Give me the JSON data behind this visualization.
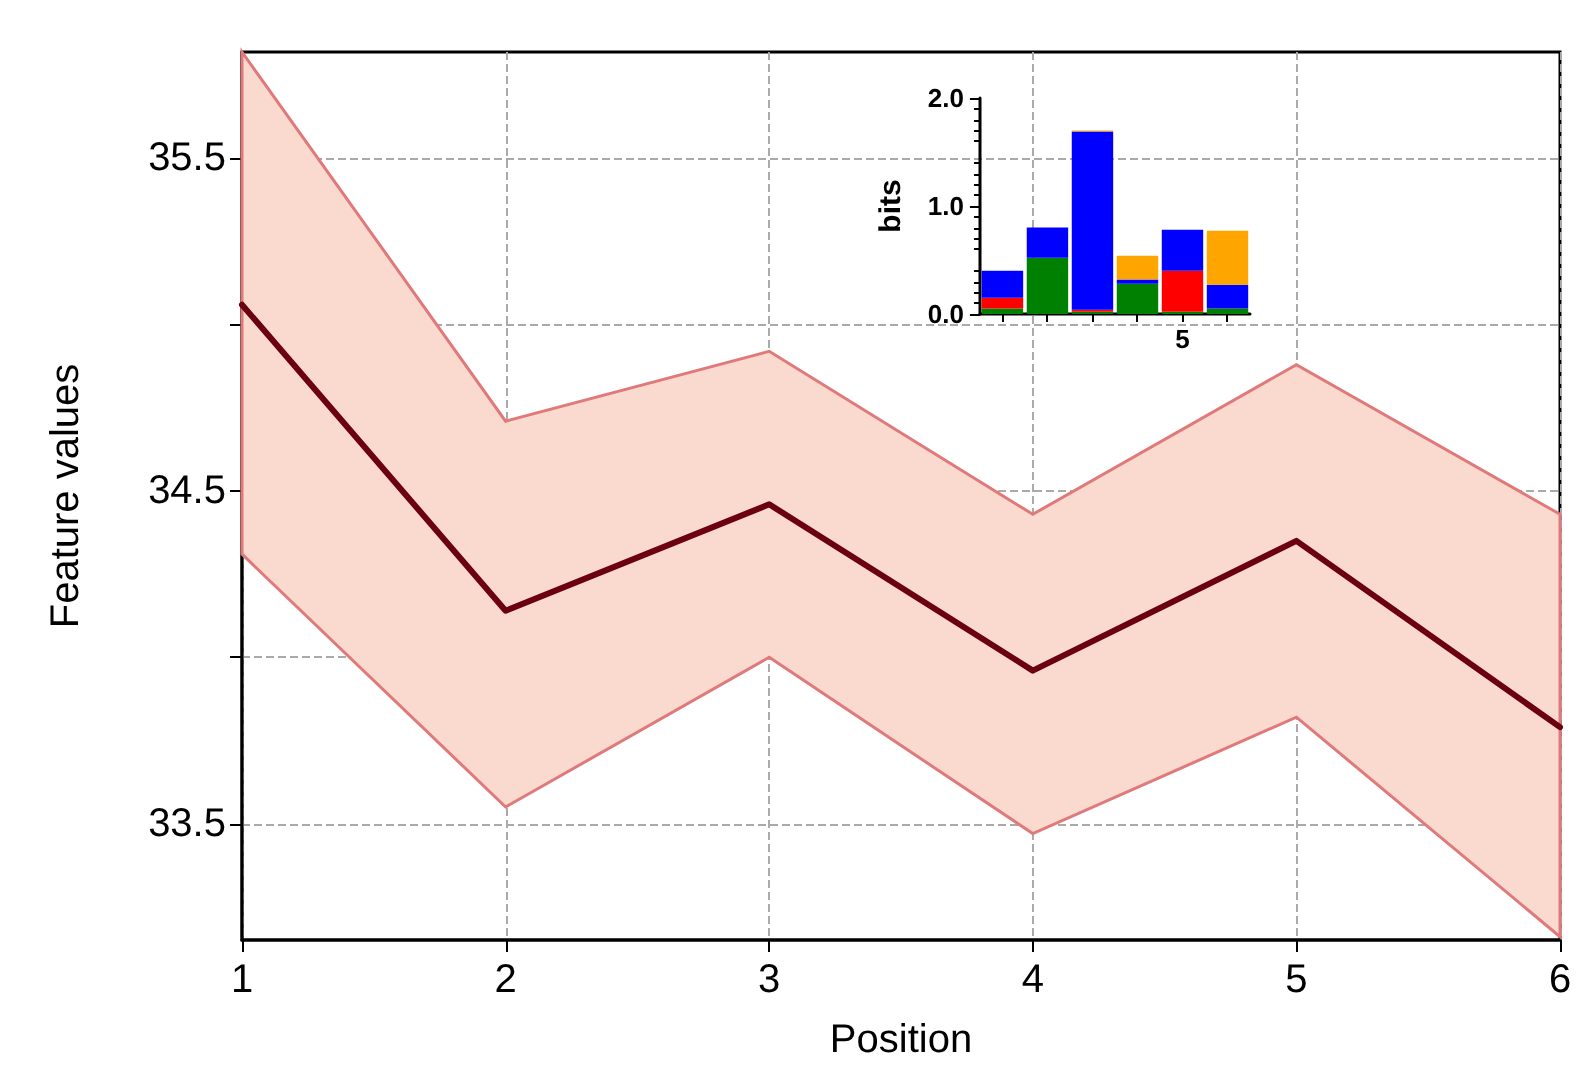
{
  "chart_data": [
    {
      "type": "line",
      "xlabel": "Position",
      "ylabel": "Feature values",
      "x": [
        1,
        2,
        3,
        4,
        5,
        6
      ],
      "series": [
        {
          "color": "#6b0010",
          "values": [
            35.06,
            34.14,
            34.46,
            33.96,
            34.35,
            33.79
          ],
          "lower": [
            34.31,
            33.55,
            34.0,
            33.47,
            33.82,
            33.16
          ],
          "upper": [
            35.82,
            34.71,
            34.92,
            34.43,
            34.88,
            34.43
          ]
        }
      ],
      "xlim": [
        1,
        6
      ],
      "xticks": [
        1,
        2,
        3,
        4,
        5,
        6
      ],
      "ylim": [
        33.15,
        35.82
      ],
      "yticks": [
        33.5,
        {
          "value": 34,
          "label": null
        },
        34.5,
        {
          "value": 35,
          "label": null
        },
        35.5
      ],
      "grid": true,
      "marker": "none",
      "line_style": "solid"
    },
    {
      "type": "bar",
      "stacked": true,
      "ylabel": "bits",
      "categories": [
        null,
        null,
        null,
        null,
        "5",
        null
      ],
      "series": [
        {
          "color": "#008000",
          "values": [
            0.05,
            0.52,
            0.02,
            0.28,
            0.02,
            0.05
          ]
        },
        {
          "color": "#ff0000",
          "values": [
            0.1,
            0.0,
            0.02,
            0.0,
            0.38,
            0.0
          ]
        },
        {
          "color": "#0000ff",
          "values": [
            0.25,
            0.28,
            1.65,
            0.04,
            0.38,
            0.22
          ]
        },
        {
          "color": "#ffa500",
          "values": [
            0.0,
            0.0,
            0.01,
            0.22,
            0.0,
            0.5
          ]
        }
      ],
      "ylim": [
        0,
        2
      ],
      "yticks": [
        {
          "value": 0,
          "label": "0.0"
        },
        {
          "value": 1,
          "label": "1.0"
        },
        {
          "value": 2,
          "label": "2.0"
        }
      ],
      "grid": false
    }
  ]
}
